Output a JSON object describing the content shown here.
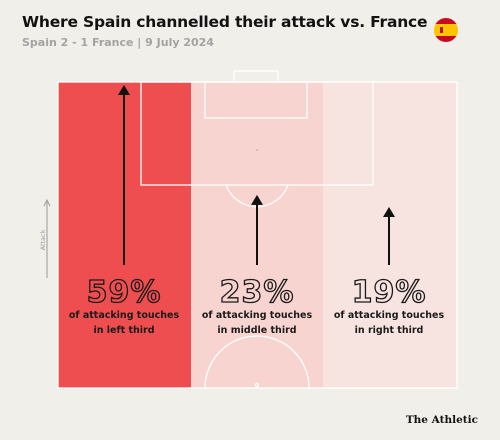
{
  "title": "Where Spain channelled their attack vs. France",
  "subtitle": "Spain 2 - 1 France | 9 July 2024",
  "flag_icon": "spain-flag-icon",
  "brand": "The Athletic",
  "colors": {
    "background": "#f1efe9",
    "pitch_lines": "#ffffff",
    "zone_left": "#ee4e4f",
    "zone_middle": "#f8d4d1",
    "zone_right": "#f7e4e0",
    "arrow": "#111111",
    "flag_red": "#c60b1e",
    "flag_yellow": "#ffc400"
  },
  "chart_data": {
    "type": "bar",
    "ylabel": "Attack",
    "categories": [
      "left third",
      "middle third",
      "right third"
    ],
    "values": [
      59,
      23,
      19
    ],
    "labels": [
      "59%",
      "23%",
      "19%"
    ],
    "captions": [
      [
        "of attacking touches",
        "in left third"
      ],
      [
        "of attacking touches",
        "in middle third"
      ],
      [
        "of attacking touches",
        "in right third"
      ]
    ]
  }
}
